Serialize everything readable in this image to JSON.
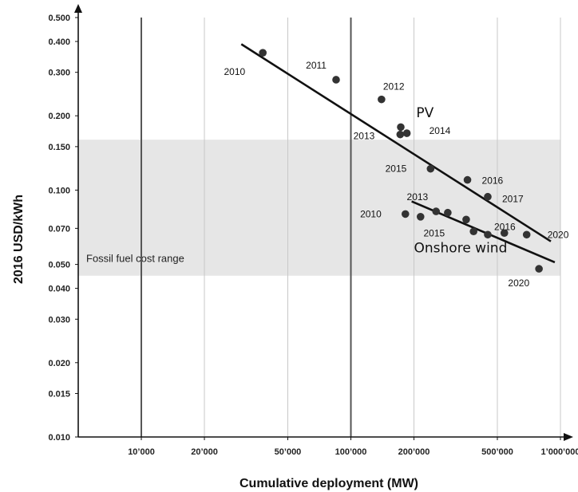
{
  "chart_data": {
    "type": "scatter",
    "xlabel": "Cumulative deployment (MW)",
    "ylabel": "2016 USD/kWh",
    "x_scale": "log",
    "y_scale": "log",
    "xlim": [
      5000,
      1000000
    ],
    "ylim": [
      0.01,
      0.5
    ],
    "x_ticks": [
      {
        "value": 10000,
        "label": "10’000"
      },
      {
        "value": 20000,
        "label": "20’000"
      },
      {
        "value": 50000,
        "label": "50’000"
      },
      {
        "value": 100000,
        "label": "100’000"
      },
      {
        "value": 200000,
        "label": "200’000"
      },
      {
        "value": 500000,
        "label": "500’000"
      },
      {
        "value": 1000000,
        "label": "1’000’000"
      }
    ],
    "y_ticks": [
      {
        "value": 0.01,
        "label": "0.010"
      },
      {
        "value": 0.015,
        "label": "0.015"
      },
      {
        "value": 0.02,
        "label": "0.020"
      },
      {
        "value": 0.03,
        "label": "0.030"
      },
      {
        "value": 0.04,
        "label": "0.040"
      },
      {
        "value": 0.05,
        "label": "0.050"
      },
      {
        "value": 0.07,
        "label": "0.070"
      },
      {
        "value": 0.1,
        "label": "0.100"
      },
      {
        "value": 0.15,
        "label": "0.150"
      },
      {
        "value": 0.2,
        "label": "0.200"
      },
      {
        "value": 0.3,
        "label": "0.300"
      },
      {
        "value": 0.4,
        "label": "0.400"
      },
      {
        "value": 0.5,
        "label": "0.500"
      }
    ],
    "vertical_lines_x": [
      10000,
      100000
    ],
    "band": {
      "label": "Fossil fuel cost range",
      "y_range": [
        0.045,
        0.16
      ],
      "color": "#e6e6e6"
    },
    "series": [
      {
        "name": "PV",
        "color": "#333333",
        "points": [
          {
            "x": 38000,
            "y": 0.36,
            "label": "2010"
          },
          {
            "x": 85000,
            "y": 0.28,
            "label": "2011"
          },
          {
            "x": 140000,
            "y": 0.233,
            "label": "2012"
          },
          {
            "x": 173000,
            "y": 0.18,
            "label": ""
          },
          {
            "x": 185000,
            "y": 0.17,
            "label": "2014"
          },
          {
            "x": 172000,
            "y": 0.168,
            "label": "2013"
          },
          {
            "x": 240000,
            "y": 0.122,
            "label": "2015"
          },
          {
            "x": 360000,
            "y": 0.11,
            "label": "2016"
          },
          {
            "x": 450000,
            "y": 0.094,
            "label": "2017"
          },
          {
            "x": 690000,
            "y": 0.066,
            "label": "2020"
          }
        ],
        "trend": [
          {
            "x": 30000,
            "y": 0.39
          },
          {
            "x": 900000,
            "y": 0.062
          }
        ]
      },
      {
        "name": "Onshore wind",
        "color": "#333333",
        "points": [
          {
            "x": 182000,
            "y": 0.08,
            "label": "2010"
          },
          {
            "x": 215000,
            "y": 0.078,
            "label": ""
          },
          {
            "x": 255000,
            "y": 0.082,
            "label": "2013"
          },
          {
            "x": 290000,
            "y": 0.081,
            "label": ""
          },
          {
            "x": 355000,
            "y": 0.076,
            "label": ""
          },
          {
            "x": 385000,
            "y": 0.068,
            "label": "2015"
          },
          {
            "x": 450000,
            "y": 0.066,
            "label": "2016"
          },
          {
            "x": 540000,
            "y": 0.067,
            "label": ""
          },
          {
            "x": 790000,
            "y": 0.048,
            "label": "2020"
          }
        ],
        "trend": [
          {
            "x": 195000,
            "y": 0.09
          },
          {
            "x": 940000,
            "y": 0.051
          }
        ]
      }
    ]
  }
}
